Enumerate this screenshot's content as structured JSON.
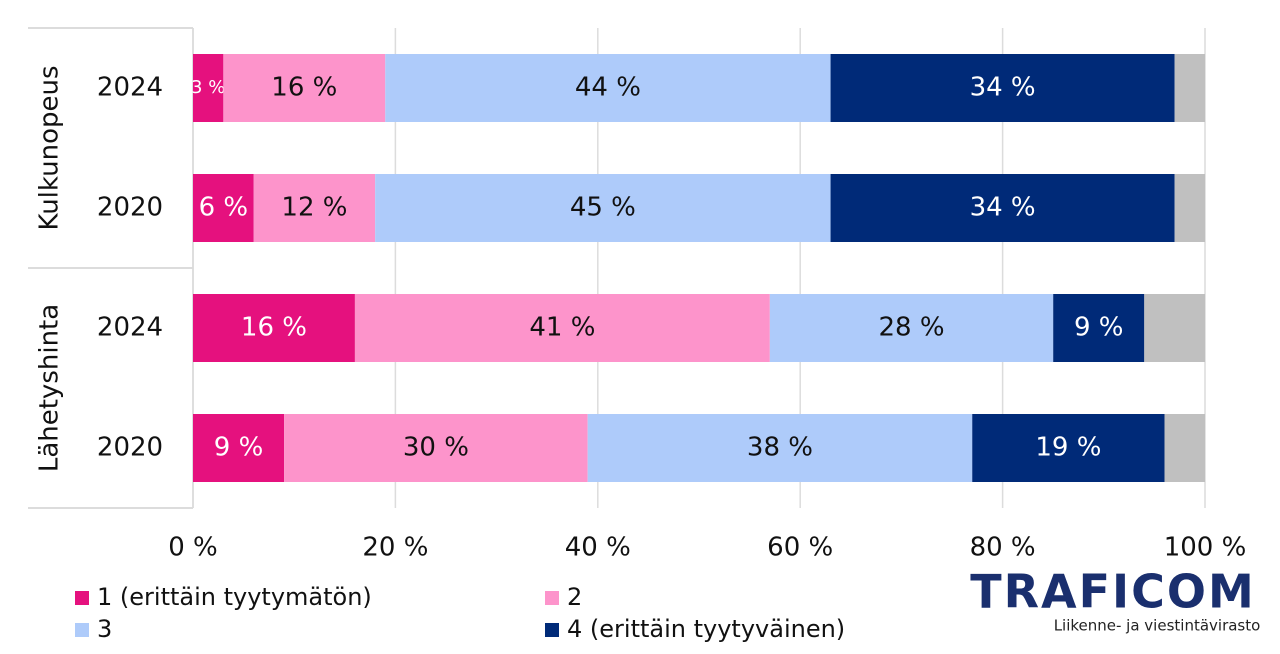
{
  "chart_data": {
    "type": "stacked-bar-horizontal",
    "groups": [
      {
        "name": "Kulkunopeus",
        "categories": [
          "2024",
          "2020"
        ]
      },
      {
        "name": "Lähetyshinta",
        "categories": [
          "2024",
          "2020"
        ]
      }
    ],
    "series": [
      {
        "name": "1 (erittäin tyytymätön)",
        "color": "#e5117e",
        "label_color": "#ffffff",
        "values": [
          3,
          6,
          16,
          9
        ],
        "value_labels": [
          "3 %",
          "6 %",
          "16 %",
          "9 %"
        ]
      },
      {
        "name": "2",
        "color": "#fd94cb",
        "label_color": "#111111",
        "values": [
          16,
          12,
          41,
          30
        ],
        "value_labels": [
          "16 %",
          "12 %",
          "41 %",
          "30 %"
        ]
      },
      {
        "name": "3",
        "color": "#aecbfa",
        "label_color": "#111111",
        "values": [
          44,
          45,
          28,
          38
        ],
        "value_labels": [
          "44 %",
          "45 %",
          "28 %",
          "38 %"
        ]
      },
      {
        "name": "4 (erittäin tyytyväinen)",
        "color": "#002a78",
        "label_color": "#ffffff",
        "values": [
          34,
          34,
          9,
          19
        ],
        "value_labels": [
          "34 %",
          "34 %",
          "9 %",
          "19 %"
        ]
      },
      {
        "color": "#c0c0c0",
        "values": [
          3,
          3,
          6,
          4
        ]
      }
    ],
    "xlim": [
      0,
      100
    ],
    "xticks": [
      {
        "value": 0,
        "label": "0 %"
      },
      {
        "value": 20,
        "label": "20 %"
      },
      {
        "value": 40,
        "label": "40 %"
      },
      {
        "value": 60,
        "label": "60 %"
      },
      {
        "value": 80,
        "label": "80 %"
      },
      {
        "value": 100,
        "label": "100 %"
      }
    ],
    "grid": true
  },
  "logo": {
    "name": "TRAFICOM",
    "tagline": "Liikenne- ja viestintävirasto"
  }
}
